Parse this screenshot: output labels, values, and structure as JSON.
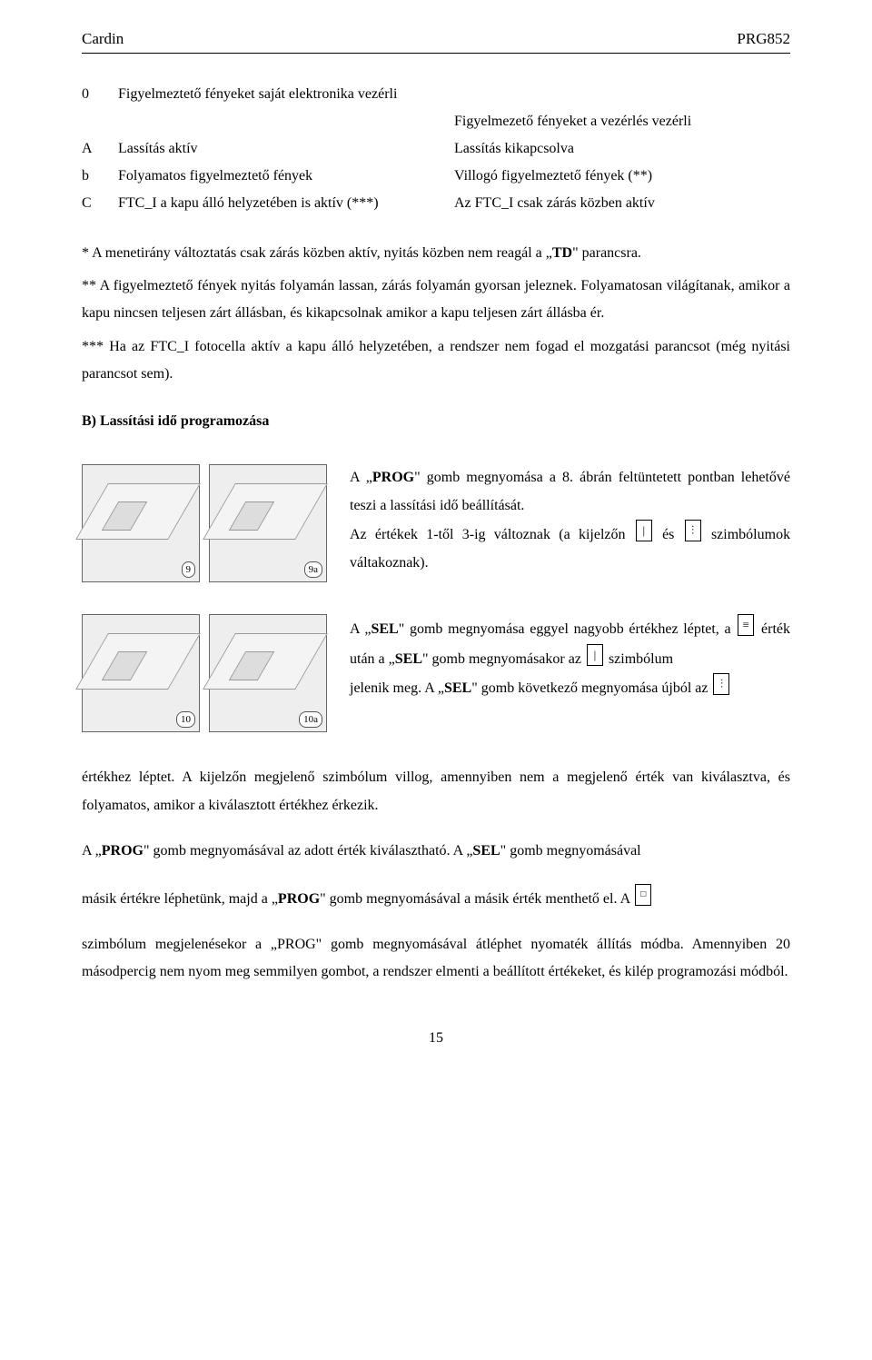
{
  "header": {
    "brand": "Cardin",
    "model": "PRG852"
  },
  "table": {
    "rows": [
      {
        "key": "0",
        "col1": "Figyelmeztető fényeket saját elektronika vezérli",
        "col2": ""
      },
      {
        "key": "",
        "col1": "",
        "col2": "Figyelmezető fényeket a vezérlés vezérli"
      },
      {
        "key": "A",
        "col1": "Lassítás aktív",
        "col2": "Lassítás kikapcsolva"
      },
      {
        "key": "b",
        "col1": "Folyamatos figyelmeztető fények",
        "col2": "Villogó figyelmeztető fények (**)"
      },
      {
        "key": "C",
        "col1": "FTC_I a kapu álló helyzetében is aktív (***)",
        "col2": "Az FTC_I csak zárás közben aktív"
      }
    ]
  },
  "notes": {
    "n1_a": "* A menetirány változtatás csak zárás közben aktív, nyitás közben nem reagál a „",
    "n1_td": "TD",
    "n1_b": "\" parancsra.",
    "n2": "** A figyelmeztető fények nyitás folyamán lassan, zárás folyamán gyorsan jeleznek. Folyamatosan világítanak, amikor a kapu nincsen teljesen zárt állásban, és kikapcsolnak amikor a kapu teljesen zárt állásba ér.",
    "n3": "*** Ha az FTC_I fotocella aktív a kapu álló helyzetében, a rendszer nem fogad el mozgatási parancsot (még nyitási parancsot sem)."
  },
  "sectionB": {
    "title": "B) Lassítási idő programozása",
    "fig": {
      "a": "9",
      "b": "9a",
      "c": "10",
      "d": "10a"
    },
    "p1_a": "A „",
    "p1_prog": "PROG",
    "p1_b": "\" gomb megnyomása a 8. ábrán feltüntetett pontban lehetővé teszi a lassítási idő beállítását.",
    "p2_a": "Az értékek 1-től 3-ig változnak (a kijelzőn",
    "p2_b": "és",
    "p2_c": "szimbólumok váltakoznak).",
    "p3_a": "A „",
    "p3_sel": "SEL",
    "p3_b": "\" gomb megnyomása eggyel nagyobb értékhez léptet, a",
    "p3_c": "érték után a „",
    "p3_d": "\" gomb megnyomásakor az",
    "p3_e": "szimbólum",
    "p4_a": "jelenik meg. A „",
    "p4_sel": "SEL",
    "p4_b": "\" gomb következő megnyomása újból az",
    "p5": "értékhez léptet. A kijelzőn megjelenő szimbólum villog, amennyiben nem a megjelenő érték van kiválasztva, és folyamatos, amikor a kiválasztott értékhez érkezik."
  },
  "closing": {
    "p1_a": "A „",
    "p1_prog": "PROG",
    "p1_b": "\" gomb megnyomásával az adott érték kiválasztható. A „",
    "p1_sel": "SEL",
    "p1_c": "\" gomb megnyomásával",
    "p2_a": "másik értékre léphetünk, majd a „",
    "p2_prog": "PROG",
    "p2_b": "\" gomb megnyomásával a másik érték menthető el. A",
    "p3": "szimbólum megjelenésekor a „PROG\" gomb megnyomásával átléphet nyomaték állítás módba. Amennyiben 20 másodpercig nem nyom meg semmilyen gombot, a rendszer elmenti a beállított értékeket, és kilép programozási módból."
  },
  "page": "15"
}
